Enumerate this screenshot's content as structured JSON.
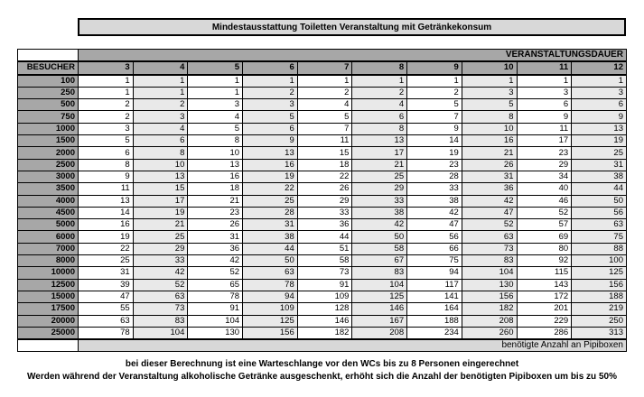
{
  "title": "Mindestausstattung Toiletten Veranstaltung mit Getränkekonsum",
  "table": {
    "duration_header": "VERANSTALTUNGSDAUER",
    "visitors_header": "BESUCHER",
    "duration_columns": [
      "3",
      "4",
      "5",
      "6",
      "7",
      "8",
      "9",
      "10",
      "11",
      "12"
    ],
    "rows": [
      {
        "visitors": "100",
        "values": [
          1,
          1,
          1,
          1,
          1,
          1,
          1,
          1,
          1,
          1
        ]
      },
      {
        "visitors": "250",
        "values": [
          1,
          1,
          1,
          2,
          2,
          2,
          2,
          3,
          3,
          3
        ]
      },
      {
        "visitors": "500",
        "values": [
          2,
          2,
          3,
          3,
          4,
          4,
          5,
          5,
          6,
          6
        ]
      },
      {
        "visitors": "750",
        "values": [
          2,
          3,
          4,
          5,
          5,
          6,
          7,
          8,
          9,
          9
        ]
      },
      {
        "visitors": "1000",
        "values": [
          3,
          4,
          5,
          6,
          7,
          8,
          9,
          10,
          11,
          13
        ]
      },
      {
        "visitors": "1500",
        "values": [
          5,
          6,
          8,
          9,
          11,
          13,
          14,
          16,
          17,
          19
        ]
      },
      {
        "visitors": "2000",
        "values": [
          6,
          8,
          10,
          13,
          15,
          17,
          19,
          21,
          23,
          25
        ]
      },
      {
        "visitors": "2500",
        "values": [
          8,
          10,
          13,
          16,
          18,
          21,
          23,
          26,
          29,
          31
        ]
      },
      {
        "visitors": "3000",
        "values": [
          9,
          13,
          16,
          19,
          22,
          25,
          28,
          31,
          34,
          38
        ]
      },
      {
        "visitors": "3500",
        "values": [
          11,
          15,
          18,
          22,
          26,
          29,
          33,
          36,
          40,
          44
        ]
      },
      {
        "visitors": "4000",
        "values": [
          13,
          17,
          21,
          25,
          29,
          33,
          38,
          42,
          46,
          50
        ]
      },
      {
        "visitors": "4500",
        "values": [
          14,
          19,
          23,
          28,
          33,
          38,
          42,
          47,
          52,
          56
        ]
      },
      {
        "visitors": "5000",
        "values": [
          16,
          21,
          26,
          31,
          36,
          42,
          47,
          52,
          57,
          63
        ]
      },
      {
        "visitors": "6000",
        "values": [
          19,
          25,
          31,
          38,
          44,
          50,
          56,
          63,
          69,
          75
        ]
      },
      {
        "visitors": "7000",
        "values": [
          22,
          29,
          36,
          44,
          51,
          58,
          66,
          73,
          80,
          88
        ]
      },
      {
        "visitors": "8000",
        "values": [
          25,
          33,
          42,
          50,
          58,
          67,
          75,
          83,
          92,
          100
        ]
      },
      {
        "visitors": "10000",
        "values": [
          31,
          42,
          52,
          63,
          73,
          83,
          94,
          104,
          115,
          125
        ]
      },
      {
        "visitors": "12500",
        "values": [
          39,
          52,
          65,
          78,
          91,
          104,
          117,
          130,
          143,
          156
        ]
      },
      {
        "visitors": "15000",
        "values": [
          47,
          63,
          78,
          94,
          109,
          125,
          141,
          156,
          172,
          188
        ]
      },
      {
        "visitors": "17500",
        "values": [
          55,
          73,
          91,
          109,
          128,
          146,
          164,
          182,
          201,
          219
        ]
      },
      {
        "visitors": "20000",
        "values": [
          63,
          83,
          104,
          125,
          146,
          167,
          188,
          208,
          229,
          250
        ]
      },
      {
        "visitors": "25000",
        "values": [
          78,
          104,
          130,
          156,
          182,
          208,
          234,
          260,
          286,
          313
        ]
      }
    ],
    "footer": "benötigte Anzahl an Pipiboxen"
  },
  "notes": {
    "line1": "bei dieser Berechnung ist eine Warteschlange vor den WCs bis zu 8 Personen eingerechnet",
    "line2": "Werden während der Veranstaltung alkoholische Getränke ausgeschenkt, erhöht sich die Anzahl der benötigten Pipiboxen um bis zu 50%"
  },
  "colors": {
    "header_fill": "#a7a7a7",
    "bar_fill": "#d8d8d8",
    "stripe_fill": "#e9e9e9",
    "grid_border": "#000000"
  }
}
